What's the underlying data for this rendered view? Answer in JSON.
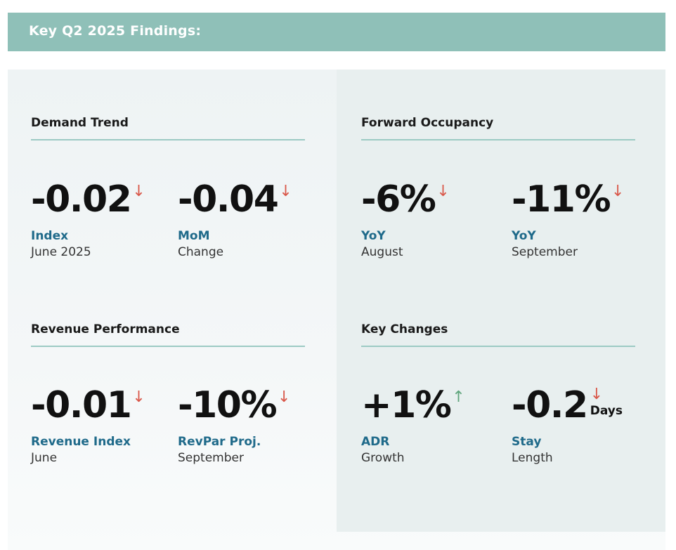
{
  "header": {
    "title": "Key Q2 2025 Findings:"
  },
  "sections": {
    "demand": {
      "title": "Demand Trend",
      "stats": [
        {
          "value": "-0.02",
          "direction": "down",
          "label": "Index",
          "sub": "June 2025"
        },
        {
          "value": "-0.04",
          "direction": "down",
          "label": "MoM",
          "sub": "Change"
        }
      ]
    },
    "occupancy": {
      "title": "Forward Occupancy",
      "stats": [
        {
          "value": "-6%",
          "direction": "down",
          "label": "YoY",
          "sub": "August"
        },
        {
          "value": "-11%",
          "direction": "down",
          "label": "YoY",
          "sub": "September"
        }
      ]
    },
    "revenue": {
      "title": "Revenue Performance",
      "stats": [
        {
          "value": "-0.01",
          "direction": "down",
          "label": "Revenue Index",
          "sub": "June"
        },
        {
          "value": "-10%",
          "direction": "down",
          "label": "RevPar Proj.",
          "sub": "September"
        }
      ]
    },
    "changes": {
      "title": "Key Changes",
      "stats": [
        {
          "value": "+1%",
          "direction": "up",
          "label": "ADR",
          "sub": "Growth"
        },
        {
          "value": "-0.2",
          "direction": "down",
          "unit": "Days",
          "label": "Stay",
          "sub": "Length"
        }
      ]
    }
  },
  "icons": {
    "down": "arrow-down-icon",
    "up": "arrow-up-icon"
  },
  "colors": {
    "accent": "#8fc0b8",
    "label": "#1f6a8a",
    "down": "#d9584a",
    "up": "#5fa57c"
  }
}
